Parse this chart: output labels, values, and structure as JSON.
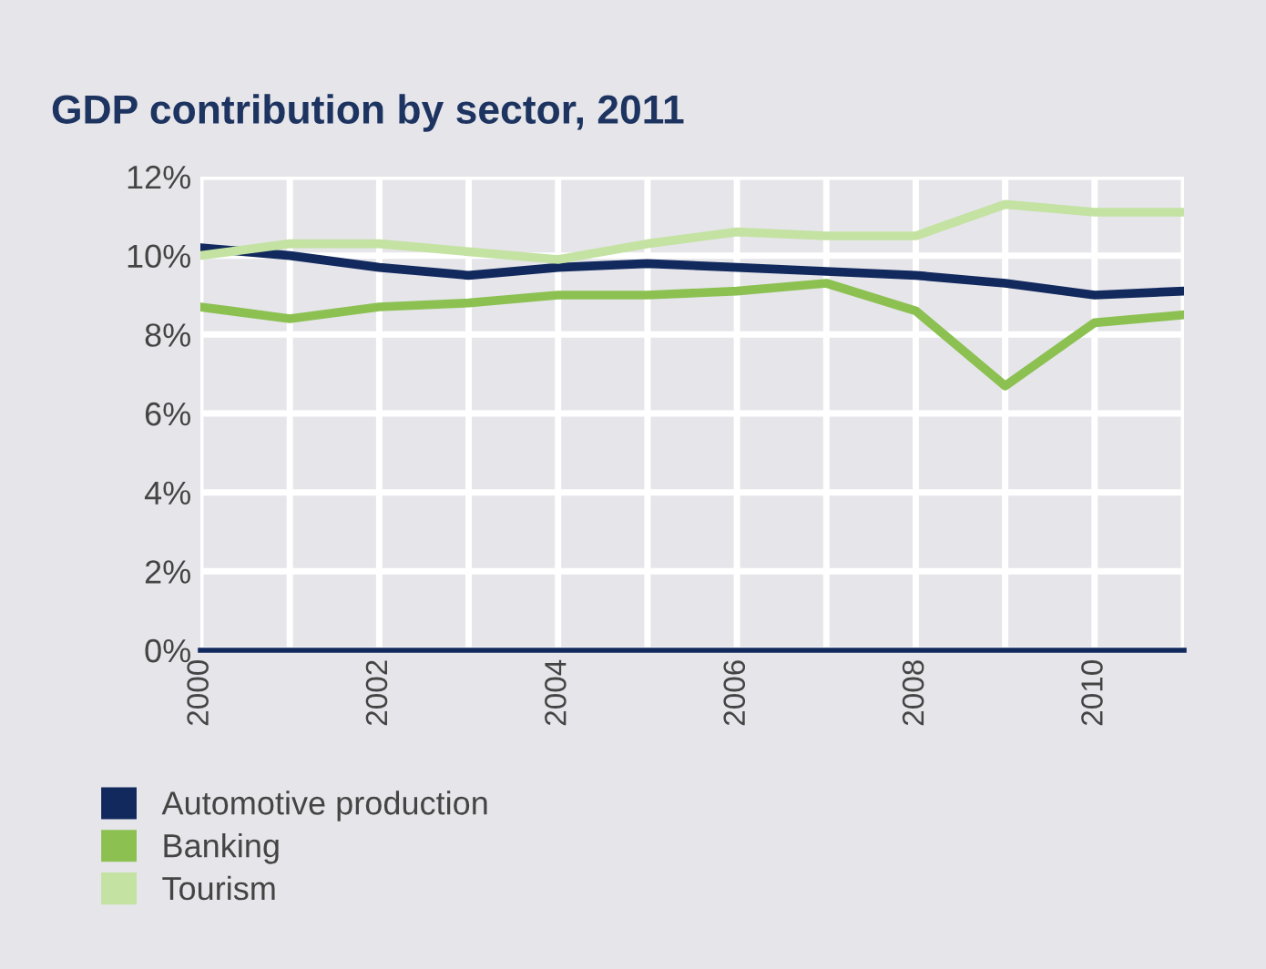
{
  "chart_data": {
    "type": "line",
    "title": "GDP contribution by sector, 2011",
    "x": [
      2000,
      2001,
      2002,
      2003,
      2004,
      2005,
      2006,
      2007,
      2008,
      2009,
      2010,
      2011
    ],
    "series": [
      {
        "name": "Automotive production",
        "color": "#12295e",
        "values": [
          10.2,
          10.0,
          9.7,
          9.5,
          9.7,
          9.8,
          9.7,
          9.6,
          9.5,
          9.3,
          9.0,
          9.1
        ]
      },
      {
        "name": "Banking",
        "color": "#8cc152",
        "values": [
          8.7,
          8.4,
          8.7,
          8.8,
          9.0,
          9.0,
          9.1,
          9.3,
          8.6,
          6.7,
          8.3,
          8.5
        ]
      },
      {
        "name": "Tourism",
        "color": "#c4e2a2",
        "values": [
          10.0,
          10.3,
          10.3,
          10.1,
          9.9,
          10.3,
          10.6,
          10.5,
          10.5,
          11.3,
          11.1,
          11.1
        ]
      }
    ],
    "xlim": [
      2000,
      2011
    ],
    "xticks": [
      2000,
      2002,
      2004,
      2006,
      2008,
      2010
    ],
    "ylim": [
      0,
      12
    ],
    "yticks": [
      {
        "value": 0,
        "label": "0%"
      },
      {
        "value": 2,
        "label": "2%"
      },
      {
        "value": 4,
        "label": "4%"
      },
      {
        "value": 6,
        "label": "6%"
      },
      {
        "value": 8,
        "label": "8%"
      },
      {
        "value": 10,
        "label": "10%"
      },
      {
        "value": 12,
        "label": "12%"
      }
    ],
    "grid": true,
    "legend": "bottom",
    "marker": "none",
    "line_style": "solid"
  }
}
